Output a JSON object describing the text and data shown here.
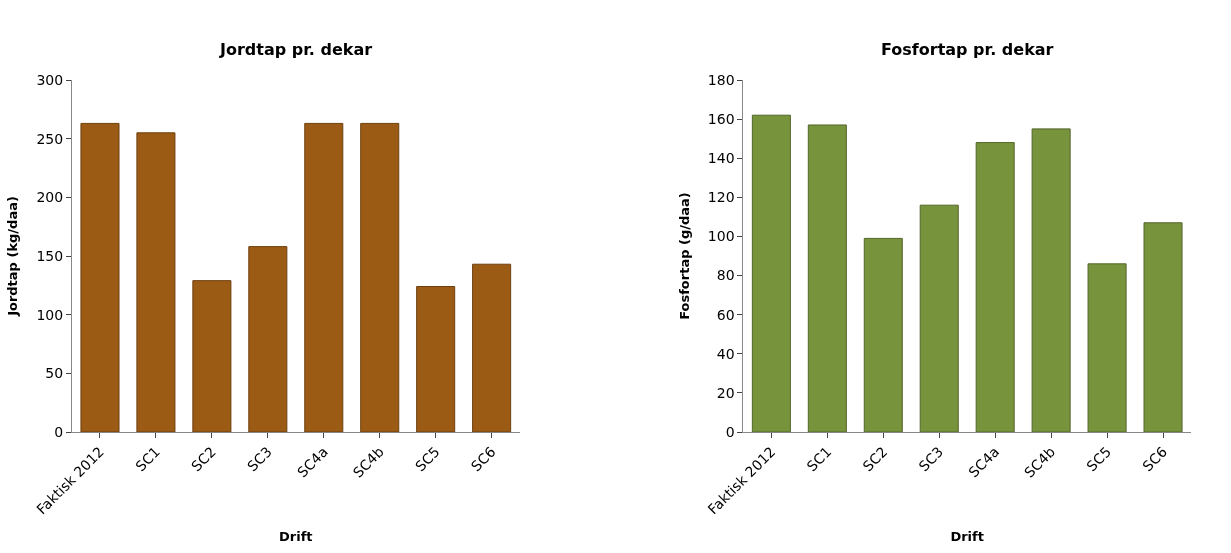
{
  "chart_data": [
    {
      "type": "bar",
      "title": "Jordtap pr. dekar",
      "xlabel": "Drift",
      "ylabel": "Jordtap (kg/daa)",
      "categories": [
        "Faktisk 2012",
        "SC1",
        "SC2",
        "SC3",
        "SC4a",
        "SC4b",
        "SC5",
        "SC6"
      ],
      "values": [
        263,
        255,
        129,
        158,
        263,
        263,
        124,
        143
      ],
      "color": "#9c5b14",
      "ylim": [
        0,
        300
      ],
      "yticks": [
        0,
        50,
        100,
        150,
        200,
        250,
        300
      ]
    },
    {
      "type": "bar",
      "title": "Fosfortap pr. dekar",
      "xlabel": "Drift",
      "ylabel": "Fosfortap (g/daa)",
      "categories": [
        "Faktisk 2012",
        "SC1",
        "SC2",
        "SC3",
        "SC4a",
        "SC4b",
        "SC5",
        "SC6"
      ],
      "values": [
        162,
        157,
        99,
        116,
        148,
        155,
        86,
        107
      ],
      "color": "#77933c",
      "ylim": [
        0,
        180
      ],
      "yticks": [
        0,
        20,
        40,
        60,
        80,
        100,
        120,
        140,
        160,
        180
      ]
    }
  ]
}
